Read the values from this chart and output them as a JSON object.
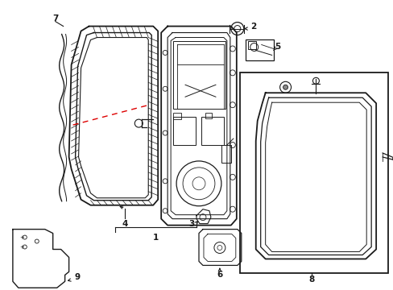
{
  "background_color": "#ffffff",
  "line_color": "#1a1a1a",
  "red_color": "#dd0000",
  "gray_bg": "#e8e8e8",
  "figsize": [
    4.89,
    3.6
  ],
  "dpi": 100
}
